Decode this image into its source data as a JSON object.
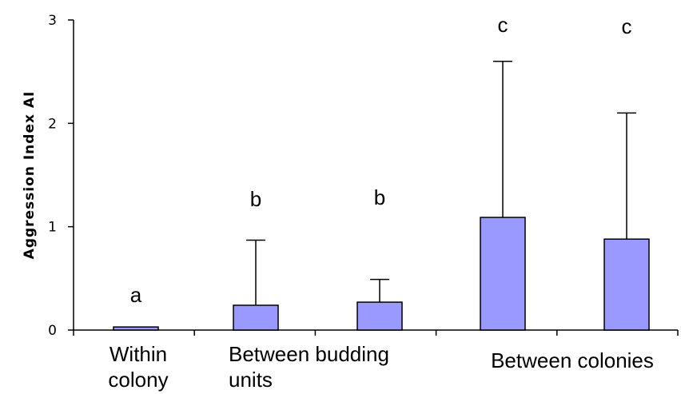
{
  "chart_data": {
    "type": "bar",
    "title": "",
    "xlabel": "",
    "ylabel": "Aggression Index AI",
    "ylim": [
      0,
      3
    ],
    "yticks": [
      "0",
      "1",
      "2",
      "3"
    ],
    "grid": false,
    "legend": "none",
    "bar_color": "#9999ff",
    "groups": [
      {
        "label_lines": [
          "Within",
          "colony"
        ]
      },
      {
        "label_lines": [
          "Between budding",
          "units"
        ]
      },
      {
        "label_lines": [
          "Between colonies"
        ]
      }
    ],
    "bars": [
      {
        "value": 0.03,
        "error": 0.0,
        "sig": "a"
      },
      {
        "value": 0.24,
        "error": 0.63,
        "sig": "b"
      },
      {
        "value": 0.27,
        "error": 0.22,
        "sig": "b"
      },
      {
        "value": 1.09,
        "error": 1.51,
        "sig": "c"
      },
      {
        "value": 0.88,
        "error": 1.22,
        "sig": "c"
      }
    ]
  }
}
